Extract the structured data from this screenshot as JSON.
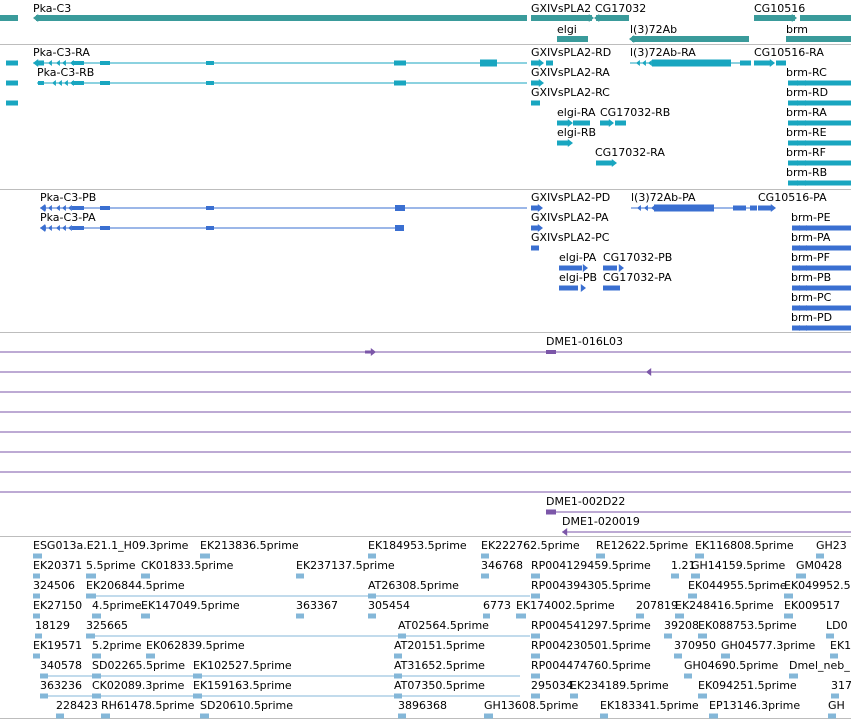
{
  "colors": {
    "gene": "#3a9b9b",
    "transcript_rna": "#19a6c0",
    "transcript_protein": "#3a6fd1",
    "clone": "#7b56a8",
    "est": "#84b7d8",
    "divider": "#bdbdbd"
  },
  "tracks": {
    "genes": {
      "labels": [
        "Pka-C3",
        "GXIVsPLA2",
        "CG17032",
        "elgi",
        "l(3)72Ab",
        "CG10516",
        "brm"
      ]
    },
    "transcripts": {
      "labels": [
        "Pka-C3-RA",
        "Pka-C3-RB",
        "GXIVsPLA2-RD",
        "GXIVsPLA2-RA",
        "GXIVsPLA2-RC",
        "elgi-RA",
        "CG17032-RB",
        "elgi-RB",
        "CG17032-RA",
        "l(3)72Ab-RA",
        "CG10516-RA",
        "brm-RC",
        "brm-RD",
        "brm-RA",
        "brm-RE",
        "brm-RF",
        "brm-RB"
      ]
    },
    "proteins": {
      "labels": [
        "Pka-C3-PB",
        "Pka-C3-PA",
        "GXIVsPLA2-PD",
        "GXIVsPLA2-PA",
        "GXIVsPLA2-PC",
        "elgi-PA",
        "CG17032-PB",
        "elgi-PB",
        "CG17032-PA",
        "l(3)72Ab-PA",
        "CG10516-PA",
        "brm-PE",
        "brm-PA",
        "brm-PF",
        "brm-PB",
        "brm-PC",
        "brm-PD"
      ]
    },
    "clones": {
      "labels": [
        "DME1-016L03",
        "DME1-002D22",
        "DME1-020019"
      ]
    },
    "ests": {
      "labels": [
        "ESG013a.E21.1_H09.3prime",
        "EK213836.5prime",
        "EK184953.5prime",
        "EK222762.5prime",
        "RE12622.5prime",
        "EK116808.5prime",
        "GH23",
        "EK20371",
        "5.5prime",
        "CK01833.5prime",
        "EK237137.5prime",
        "346768",
        "RP004129459.5prime",
        "1.21",
        "GH14159.5prime",
        "GM0428",
        "324506",
        "EK206844.5prime",
        "AT26308.5prime",
        "RP004394305.5prime",
        "EK044955.5prime",
        "EK049952.5",
        "EK27150",
        "4.5prime",
        "EK147049.5prime",
        "363367",
        "305454",
        "6773",
        "EK174002.5prime",
        "207819",
        "EK248416.5prime",
        "EK009517",
        "18129",
        "325665",
        "AT02564.5prime",
        "RP004541297.5prime",
        "39208",
        "EK088753.5prime",
        "LD0",
        "EK19571",
        "5.2prime",
        "EK062839.5prime",
        "AT20151.5prime",
        "RP004230501.5prime",
        "370950",
        "GH04577.3prime",
        "EK1",
        "340578",
        "SD02265.5prime",
        "EK102527.5prime",
        "AT31652.5prime",
        "RP004474760.5prime",
        "GH04690.5prime",
        "Dmel_neb_",
        "363236",
        "CK02089.3prime",
        "EK159163.5prime",
        "AT07350.5prime",
        "295034",
        "EK234189.5prime",
        "EK094251.5prime",
        "317",
        "228423",
        "RH61478.5prime",
        "SD20610.5prime",
        "3896368",
        "GH13608.5prime",
        "EK183341.5prime",
        "EP13146.3prime",
        "GH"
      ]
    }
  }
}
